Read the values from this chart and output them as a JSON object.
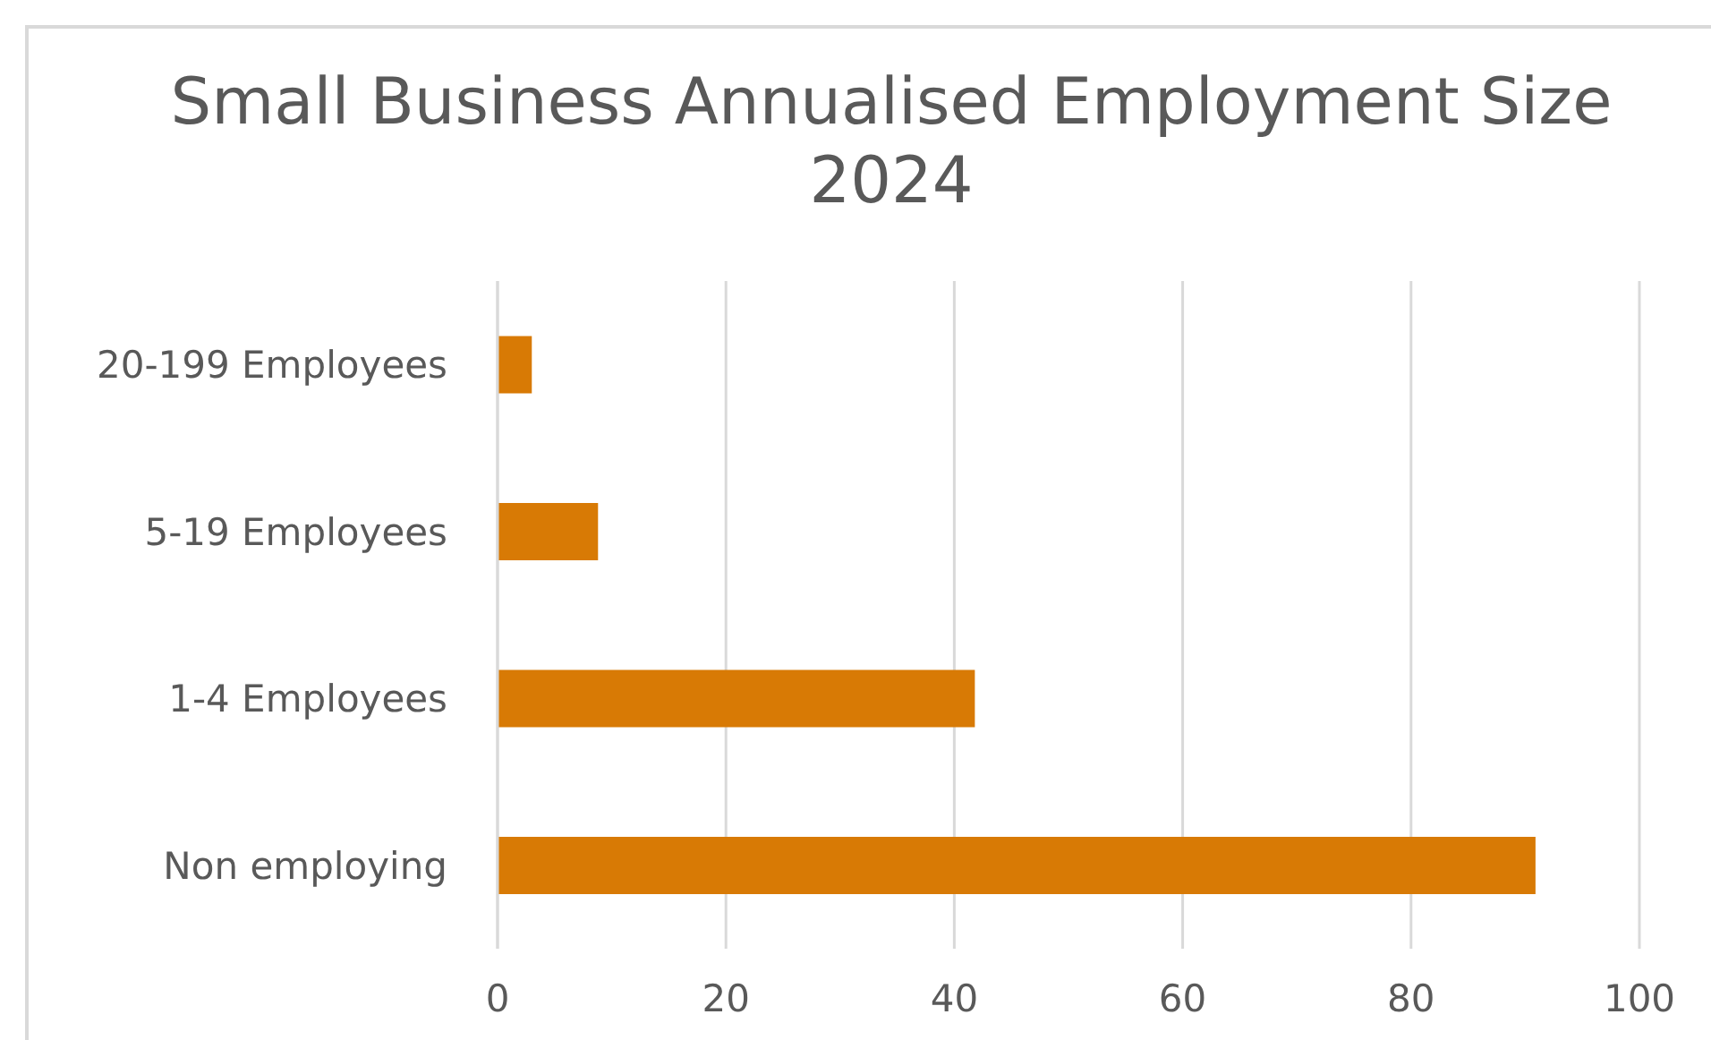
{
  "chart_data": {
    "type": "bar",
    "orientation": "horizontal",
    "title": "Small Business Annualised Employment Size 2024",
    "categories": [
      "20-199 Employees",
      "5-19 Employees",
      "1-4 Employees",
      "Non employing"
    ],
    "values": [
      3.0,
      8.8,
      41.8,
      90.9
    ],
    "color": "#d87a05",
    "xlim": [
      0,
      100
    ],
    "xticks": [
      0,
      20,
      40,
      60,
      80,
      100
    ],
    "grid": "x"
  }
}
